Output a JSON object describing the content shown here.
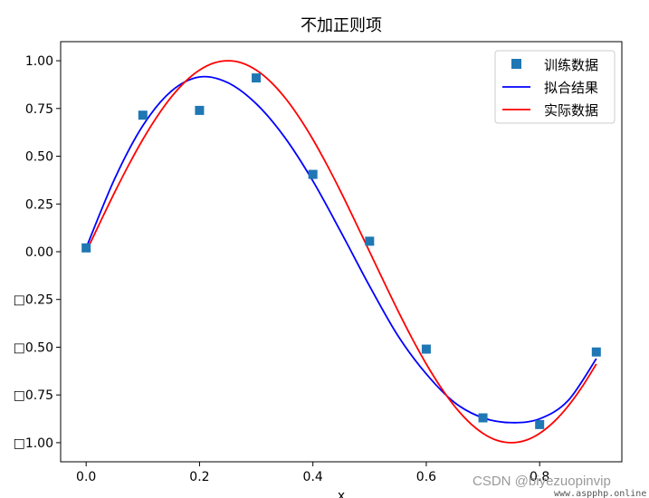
{
  "chart_data": {
    "type": "line",
    "title": "不加正则项",
    "xlabel": "x",
    "ylabel": "",
    "xlim": [
      -0.045,
      0.945
    ],
    "ylim": [
      -1.1,
      1.1
    ],
    "x_ticks": [
      0.0,
      0.2,
      0.4,
      0.6,
      0.8
    ],
    "x_tick_labels": [
      "0.0",
      "0.2",
      "0.4",
      "0.6",
      "0.8"
    ],
    "y_ticks": [
      1.0,
      0.75,
      0.5,
      0.25,
      0.0,
      -0.25,
      -0.5,
      -0.75,
      -1.0
    ],
    "y_tick_labels": [
      "1.00",
      "0.75",
      "0.50",
      "0.25",
      "0.00",
      "□0.25",
      "□0.50",
      "□0.75",
      "□1.00"
    ],
    "legend_position": "top-right",
    "grid": false,
    "series": [
      {
        "name": "训练数据",
        "kind": "scatter",
        "marker": "square",
        "color": "#1f77b4",
        "x": [
          0.0,
          0.1,
          0.2,
          0.3,
          0.4,
          0.5,
          0.6,
          0.7,
          0.8,
          0.9
        ],
        "y": [
          0.02,
          0.715,
          0.74,
          0.91,
          0.405,
          0.055,
          -0.51,
          -0.87,
          -0.905,
          -0.525
        ]
      },
      {
        "name": "拟合结果",
        "kind": "line",
        "color": "#0000ff",
        "x": [
          0.0,
          0.05,
          0.1,
          0.15,
          0.2,
          0.25,
          0.3,
          0.35,
          0.4,
          0.45,
          0.5,
          0.55,
          0.6,
          0.65,
          0.7,
          0.75,
          0.8,
          0.85,
          0.9
        ],
        "y": [
          0.02,
          0.38,
          0.66,
          0.84,
          0.915,
          0.885,
          0.775,
          0.6,
          0.37,
          0.1,
          -0.18,
          -0.44,
          -0.64,
          -0.79,
          -0.87,
          -0.895,
          -0.875,
          -0.78,
          -0.56
        ]
      },
      {
        "name": "实际数据",
        "kind": "line",
        "color": "#ff0000",
        "x": [
          0.0,
          0.025,
          0.05,
          0.075,
          0.1,
          0.125,
          0.15,
          0.175,
          0.2,
          0.225,
          0.25,
          0.275,
          0.3,
          0.325,
          0.35,
          0.375,
          0.4,
          0.425,
          0.45,
          0.475,
          0.5,
          0.525,
          0.55,
          0.575,
          0.6,
          0.625,
          0.65,
          0.675,
          0.7,
          0.725,
          0.75,
          0.775,
          0.8,
          0.825,
          0.85,
          0.875,
          0.9
        ],
        "y": [
          0.0,
          0.156,
          0.309,
          0.454,
          0.588,
          0.707,
          0.809,
          0.891,
          0.951,
          0.988,
          1.0,
          0.988,
          0.951,
          0.891,
          0.809,
          0.707,
          0.588,
          0.454,
          0.309,
          0.156,
          0.0,
          -0.156,
          -0.309,
          -0.454,
          -0.588,
          -0.707,
          -0.809,
          -0.891,
          -0.951,
          -0.988,
          -1.0,
          -0.988,
          -0.951,
          -0.891,
          -0.809,
          -0.707,
          -0.588
        ]
      }
    ]
  },
  "watermark": {
    "text": "CSDN @biyezuopinvip",
    "url": "www.aspphp.online"
  }
}
